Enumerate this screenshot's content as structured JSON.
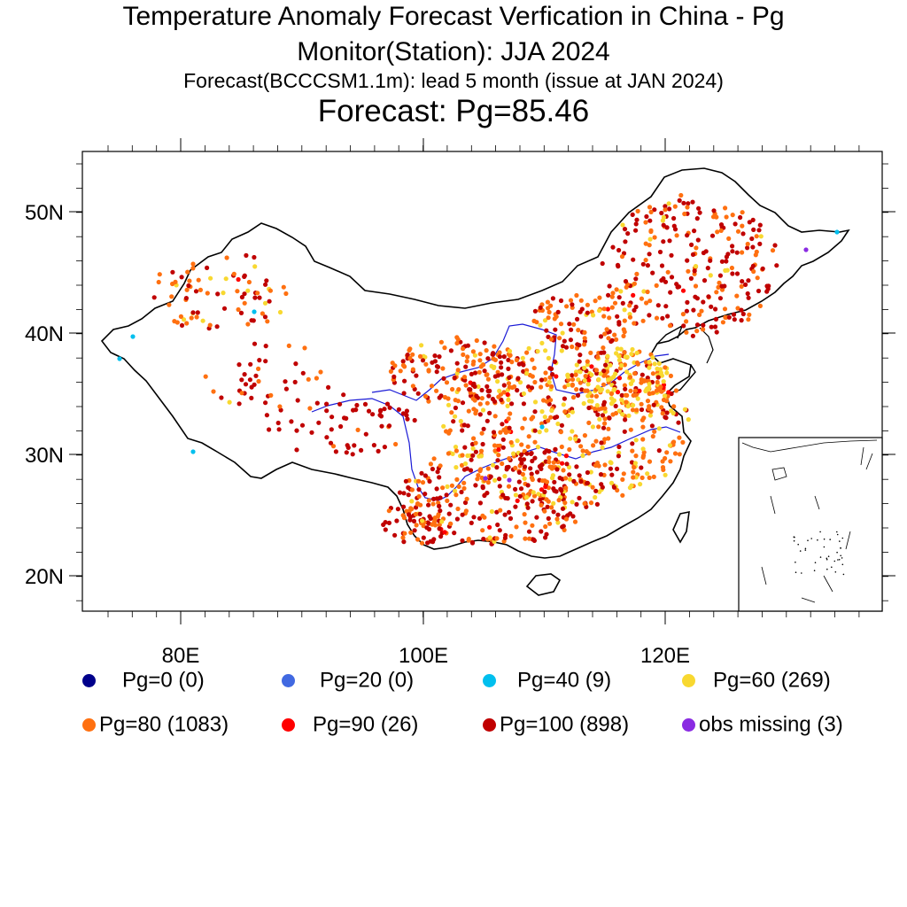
{
  "titles": {
    "line1": "Temperature Anomaly Forecast Verfication in China -  Pg",
    "line2": "Monitor(Station): JJA 2024",
    "line3": "Forecast(BCCCSM1.1m): lead 5 month (issue at JAN 2024)",
    "line4": "Forecast: Pg=85.46"
  },
  "axes": {
    "lat_labels": [
      "50N",
      "40N",
      "30N",
      "20N"
    ],
    "lon_labels": [
      "80E",
      "100E",
      "120E"
    ]
  },
  "legend": [
    {
      "label": "Pg=0 (0)",
      "color": "#00008b"
    },
    {
      "label": "Pg=20 (0)",
      "color": "#4169e1"
    },
    {
      "label": "Pg=40 (9)",
      "color": "#00bfee"
    },
    {
      "label": "Pg=60 (269)",
      "color": "#f8d830"
    },
    {
      "label": "Pg=80 (1083)",
      "color": "#ff7010"
    },
    {
      "label": "Pg=90 (26)",
      "color": "#ff0000"
    },
    {
      "label": "Pg=100 (898)",
      "color": "#c00000"
    },
    {
      "label": "obs missing (3)",
      "color": "#8a2be2"
    }
  ]
}
